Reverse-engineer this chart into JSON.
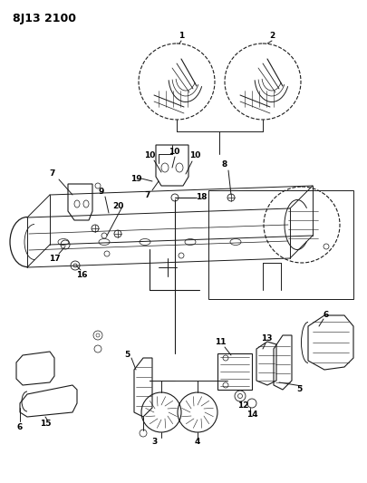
{
  "title": "8J13 2100",
  "bg_color": "#ffffff",
  "line_color": "#1a1a1a",
  "title_fontsize": 9,
  "fig_width": 4.05,
  "fig_height": 5.33,
  "dpi": 100
}
